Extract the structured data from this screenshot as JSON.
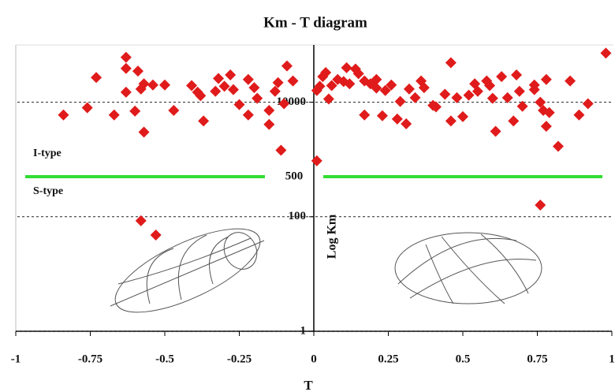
{
  "chart_data": {
    "type": "scatter",
    "title": "Km - T diagram",
    "x_label": "T",
    "y_label": "Log Km",
    "log_y": true,
    "xlim": [
      -1,
      1
    ],
    "ylim": [
      1,
      100000
    ],
    "xticks": [
      -1,
      -0.75,
      -0.5,
      -0.25,
      0,
      0.25,
      0.5,
      0.75,
      1
    ],
    "yticks": [
      1,
      100,
      10000
    ],
    "grid": true,
    "boundary_line": {
      "value": 500,
      "color": "#33dd33"
    },
    "annotations": [
      "I-type",
      "S-type"
    ],
    "x": [
      -0.84,
      -0.76,
      -0.73,
      -0.67,
      -0.63,
      -0.63,
      -0.63,
      -0.6,
      -0.59,
      -0.57,
      -0.58,
      -0.57,
      -0.54,
      -0.5,
      -0.47,
      -0.41,
      -0.39,
      -0.38,
      -0.37,
      -0.33,
      -0.32,
      -0.3,
      -0.28,
      -0.27,
      -0.25,
      -0.22,
      -0.22,
      -0.2,
      -0.19,
      -0.15,
      -0.15,
      -0.12,
      -0.11,
      -0.1,
      -0.09,
      -0.07,
      -0.13,
      0.01,
      0.01,
      0.02,
      0.03,
      0.04,
      0.05,
      0.06,
      0.08,
      0.1,
      0.11,
      0.12,
      0.14,
      0.15,
      0.17,
      0.17,
      0.19,
      0.21,
      0.21,
      0.23,
      0.24,
      0.26,
      0.28,
      0.29,
      0.31,
      0.32,
      0.34,
      0.36,
      0.37,
      0.4,
      0.41,
      0.44,
      0.46,
      0.48,
      0.46,
      0.5,
      0.52,
      0.54,
      0.55,
      0.58,
      0.59,
      0.6,
      0.61,
      0.63,
      0.65,
      0.67,
      0.68,
      0.69,
      0.7,
      0.74,
      0.74,
      0.76,
      0.77,
      0.78,
      0.78,
      0.79,
      0.76,
      0.82,
      0.86,
      0.89,
      0.92,
      0.98,
      -0.58,
      -0.53
    ],
    "series": [
      {
        "color": "#e01b1b",
        "values": [
          6000,
          8000,
          27000,
          6000,
          61000,
          39000,
          15000,
          7000,
          35000,
          3000,
          17000,
          21000,
          20000,
          20000,
          7200,
          19500,
          15000,
          13000,
          4700,
          15500,
          26000,
          19000,
          30000,
          16600,
          9100,
          25000,
          6000,
          18000,
          11700,
          4100,
          7200,
          22000,
          1450,
          9400,
          43000,
          23500,
          15500,
          950,
          16000,
          19000,
          28000,
          33000,
          11400,
          19500,
          25000,
          23000,
          40000,
          21000,
          38000,
          31500,
          23500,
          6000,
          21000,
          17700,
          25000,
          5800,
          16000,
          20000,
          5100,
          10300,
          4200,
          17000,
          12000,
          23500,
          18000,
          8800,
          8300,
          13800,
          49000,
          12000,
          4700,
          5600,
          13300,
          21000,
          15500,
          23500,
          19500,
          11700,
          3100,
          28000,
          12000,
          4700,
          30000,
          15500,
          8500,
          16600,
          20000,
          10000,
          7200,
          25000,
          3800,
          6600,
          160,
          1700,
          23500,
          6000,
          9400,
          72000,
          85,
          48
        ]
      }
    ]
  }
}
